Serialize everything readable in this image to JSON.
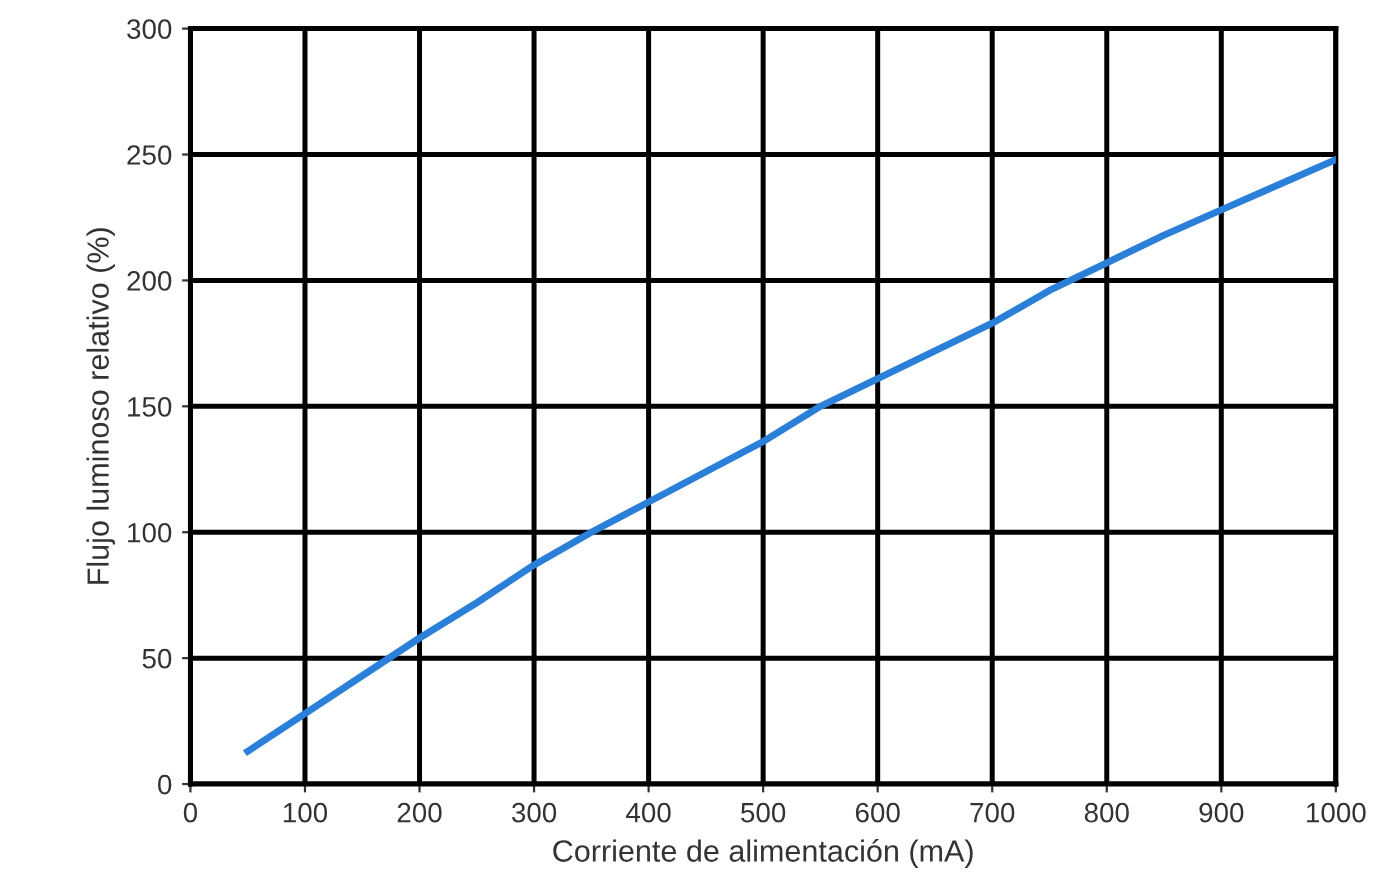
{
  "chart_data": {
    "type": "line",
    "xlabel": "Corriente de alimentación (mA)",
    "ylabel": "Flujo luminoso relativo (%)",
    "x": [
      50,
      100,
      150,
      200,
      250,
      300,
      350,
      400,
      450,
      500,
      550,
      600,
      650,
      700,
      750,
      800,
      850,
      900,
      950,
      1000
    ],
    "series": [
      {
        "color": "#2a7fd8",
        "values": [
          13,
          28,
          43,
          58,
          72,
          87,
          100,
          112,
          124,
          136,
          150,
          161,
          172,
          183,
          196,
          207,
          218,
          228,
          238,
          248
        ]
      }
    ],
    "xlim": [
      0,
      1000
    ],
    "ylim": [
      0,
      300
    ],
    "xticks": [
      0,
      100,
      200,
      300,
      400,
      500,
      600,
      700,
      800,
      900,
      1000
    ],
    "yticks": [
      0,
      50,
      100,
      150,
      200,
      250,
      300
    ],
    "grid": true,
    "marker": "none",
    "line_style": "solid"
  }
}
